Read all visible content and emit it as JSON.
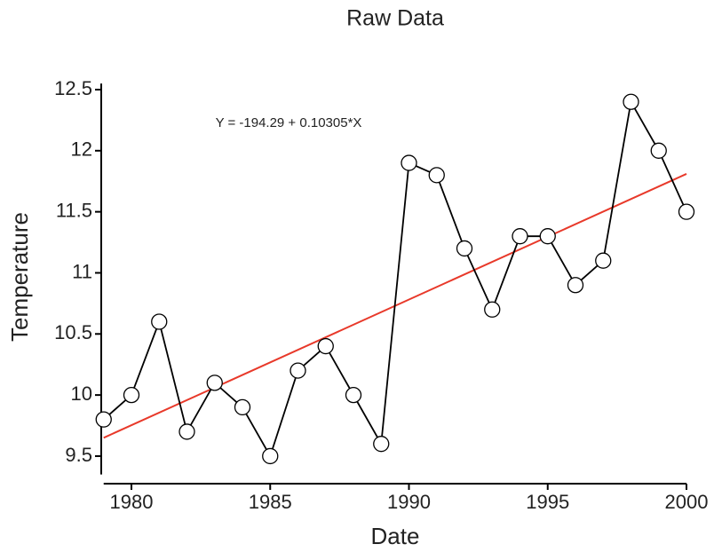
{
  "chart_data": {
    "type": "line",
    "title": "Raw Data",
    "x_label": "Date",
    "y_label": "Temperature",
    "annotation": "Y = -194.29 + 0.10305*X",
    "x": [
      1979,
      1980,
      1981,
      1982,
      1983,
      1984,
      1985,
      1986,
      1987,
      1988,
      1989,
      1990,
      1991,
      1992,
      1993,
      1994,
      1995,
      1996,
      1997,
      1998,
      1999,
      2000
    ],
    "series": [
      {
        "color": "#000000",
        "values": [
          9.8,
          10.0,
          10.6,
          9.7,
          10.1,
          9.9,
          9.5,
          10.2,
          10.4,
          10.0,
          9.6,
          11.9,
          11.8,
          11.2,
          10.7,
          11.3,
          11.3,
          10.9,
          11.1,
          12.4,
          12.0,
          11.5
        ]
      }
    ],
    "trend": {
      "x": [
        1979,
        2000
      ],
      "values": [
        9.65,
        11.81
      ],
      "color": "#e8392a"
    },
    "xlim": [
      1979,
      2000
    ],
    "ylim": [
      9.35,
      12.55
    ],
    "xticks": [
      1980,
      1985,
      1990,
      1995,
      2000
    ],
    "yticks": [
      9.5,
      10,
      10.5,
      11,
      11.5,
      12,
      12.5
    ]
  }
}
